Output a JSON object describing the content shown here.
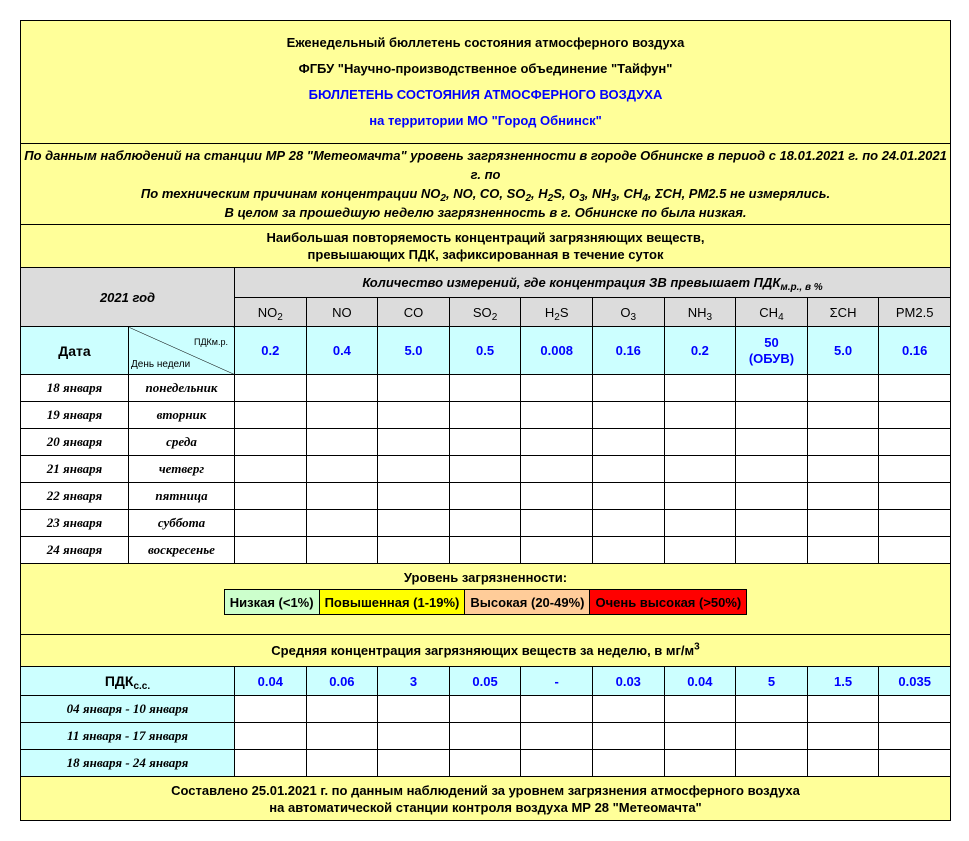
{
  "header": {
    "line1": "Еженедельный бюллетень состояния атмосферного воздуха",
    "line2": "ФГБУ \"Научно-производственное объединение \"Тайфун\"",
    "line3": "БЮЛЛЕТЕНЬ СОСТОЯНИЯ АТМОСФЕРНОГО ВОЗДУХА",
    "line4": "на территории МО \"Город Обнинск\""
  },
  "notes": {
    "line1": "По данным наблюдений на станции МР 28 \"Метеомачта\" уровень загрязненности в городе Обнинске в период с 18.01.2021 г. по 24.01.2021 г. по",
    "line2": [
      {
        "t": "По техническим причинам концентрации NO"
      },
      {
        "s": "2"
      },
      {
        "t": ", NO, CO, SO"
      },
      {
        "s": "2"
      },
      {
        "t": ", H"
      },
      {
        "s": "2"
      },
      {
        "t": "S, O"
      },
      {
        "s": "3"
      },
      {
        "t": ", NH"
      },
      {
        "s": "3"
      },
      {
        "t": ", CH"
      },
      {
        "s": "4"
      },
      {
        "t": ", ΣCH, PM2.5 не измерялись."
      }
    ],
    "line3": "В целом за прошедшую неделю загрязненность в г. Обнинске по была низкая."
  },
  "section1": {
    "title1": "Наибольшая повторяемость концентраций загрязняющих веществ,",
    "title2": "превышающих ПДК, зафиксированная в течение суток",
    "year": "2021 год",
    "count_label": "Количество измерений, где концентрация ЗВ превышает ПДК",
    "count_sub": "м.р., в %",
    "date_label": "Дата",
    "pdk_label": "ПДКм.р.",
    "weekday_label": "День недели"
  },
  "substances": [
    {
      "n": "NO",
      "s": "2"
    },
    {
      "n": "NO",
      "s": ""
    },
    {
      "n": "CO",
      "s": ""
    },
    {
      "n": "SO",
      "s": "2"
    },
    {
      "n": "H",
      "s": "2",
      "n2": "S"
    },
    {
      "n": "O",
      "s": "3"
    },
    {
      "n": "NH",
      "s": "3"
    },
    {
      "n": "CH",
      "s": "4"
    },
    {
      "n": "ΣCH",
      "s": ""
    },
    {
      "n": "PM2.5",
      "s": ""
    }
  ],
  "pdk_mr": [
    "0.2",
    "0.4",
    "5.0",
    "0.5",
    "0.008",
    "0.16",
    "0.2",
    "50\n(ОБУВ)",
    "5.0",
    "0.16"
  ],
  "days": [
    {
      "date": "18 января",
      "day": "понедельник"
    },
    {
      "date": "19 января",
      "day": "вторник"
    },
    {
      "date": "20 января",
      "day": "среда"
    },
    {
      "date": "21 января",
      "day": "четверг"
    },
    {
      "date": "22 января",
      "day": "пятница"
    },
    {
      "date": "23 января",
      "day": "суббота"
    },
    {
      "date": "24 января",
      "day": "воскресенье"
    }
  ],
  "legend": {
    "title": "Уровень загрязненности:",
    "items": [
      {
        "label": "Низкая (<1%)",
        "color": "#ccffcc"
      },
      {
        "label": "Повышенная (1-19%)",
        "color": "#ffff00"
      },
      {
        "label": "Высокая (20-49%)",
        "color": "#ffcc99"
      },
      {
        "label": "Очень высокая (>50%)",
        "color": "#ff0000"
      }
    ]
  },
  "section2": {
    "title": "Средняя концентрация загрязняющих веществ за неделю, в мг/м",
    "title_sup": "3",
    "pdk_label": "ПДК",
    "pdk_sub": "с.с."
  },
  "pdk_ss": [
    "0.04",
    "0.06",
    "3",
    "0.05",
    "-",
    "0.03",
    "0.04",
    "5",
    "1.5",
    "0.035"
  ],
  "weeks": [
    "04 января - 10 января",
    "11 января - 17 января",
    "18 января - 24 января"
  ],
  "footer": {
    "line1": "Составлено 25.01.2021 г. по данным наблюдений за уровнем загрязнения атмосферного воздуха",
    "line2": "на автоматической станции контроля воздуха МР 28 \"Метеомачта\""
  }
}
